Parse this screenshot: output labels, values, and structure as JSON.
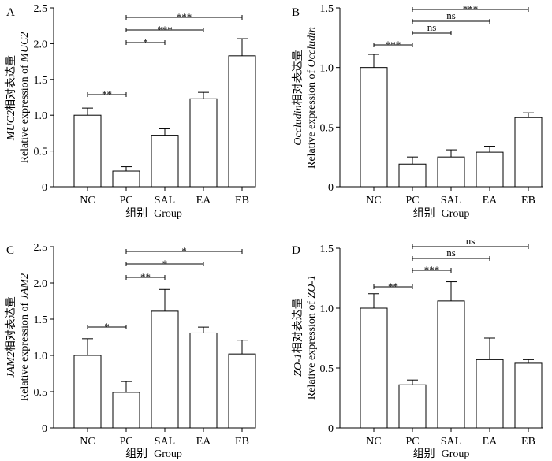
{
  "chart_data": [
    {
      "type": "bar",
      "panel": "A",
      "categories": [
        "NC",
        "PC",
        "SAL",
        "EA",
        "EB"
      ],
      "values": [
        1.0,
        0.22,
        0.72,
        1.23,
        1.83
      ],
      "errors": [
        0.1,
        0.06,
        0.09,
        0.09,
        0.24
      ],
      "ylabel_prefix": "MUC2",
      "ylabel_cn": "相对表达量",
      "ylabel_en_text": "Relative expression of ",
      "ylabel_en_gene": "MUC2",
      "xlabel_cn": "组别",
      "xlabel_en": "Group",
      "ylim": [
        0,
        2.5
      ],
      "yticks": [
        "0",
        "0.5",
        "1.0",
        "1.5",
        "2.0",
        "2.5"
      ],
      "significance": [
        {
          "from": 0,
          "to": 1,
          "label": "**"
        },
        {
          "from": 1,
          "to": 2,
          "label": "*"
        },
        {
          "from": 1,
          "to": 3,
          "label": "***"
        },
        {
          "from": 1,
          "to": 4,
          "label": "***"
        }
      ]
    },
    {
      "type": "bar",
      "panel": "B",
      "categories": [
        "NC",
        "PC",
        "SAL",
        "EA",
        "EB"
      ],
      "values": [
        1.0,
        0.19,
        0.25,
        0.29,
        0.58
      ],
      "errors": [
        0.11,
        0.06,
        0.06,
        0.05,
        0.04
      ],
      "ylabel_prefix": "Occludin",
      "ylabel_cn": "相对表达量",
      "ylabel_en_text": "Relative expression of ",
      "ylabel_en_gene": "Occludin",
      "xlabel_cn": "组别",
      "xlabel_en": "Group",
      "ylim": [
        0,
        1.5
      ],
      "yticks": [
        "0",
        "0.5",
        "1.0",
        "1.5"
      ],
      "significance": [
        {
          "from": 0,
          "to": 1,
          "label": "***"
        },
        {
          "from": 1,
          "to": 2,
          "label": "ns"
        },
        {
          "from": 1,
          "to": 3,
          "label": "ns"
        },
        {
          "from": 1,
          "to": 4,
          "label": "***"
        }
      ]
    },
    {
      "type": "bar",
      "panel": "C",
      "categories": [
        "NC",
        "PC",
        "SAL",
        "EA",
        "EB"
      ],
      "values": [
        1.0,
        0.49,
        1.61,
        1.31,
        1.02
      ],
      "errors": [
        0.23,
        0.15,
        0.3,
        0.08,
        0.19
      ],
      "ylabel_prefix": "JAM2",
      "ylabel_cn": "相对表达量",
      "ylabel_en_text": "Relative expression of ",
      "ylabel_en_gene": "JAM2",
      "xlabel_cn": "组别",
      "xlabel_en": "Group",
      "ylim": [
        0,
        2.5
      ],
      "yticks": [
        "0",
        "0.5",
        "1.0",
        "1.5",
        "2.0",
        "2.5"
      ],
      "significance": [
        {
          "from": 0,
          "to": 1,
          "label": "*"
        },
        {
          "from": 1,
          "to": 2,
          "label": "**"
        },
        {
          "from": 1,
          "to": 3,
          "label": "*"
        },
        {
          "from": 1,
          "to": 4,
          "label": "*"
        }
      ]
    },
    {
      "type": "bar",
      "panel": "D",
      "categories": [
        "NC",
        "PC",
        "SAL",
        "EA",
        "EB"
      ],
      "values": [
        1.0,
        0.36,
        1.06,
        0.57,
        0.54
      ],
      "errors": [
        0.12,
        0.04,
        0.16,
        0.18,
        0.03
      ],
      "ylabel_prefix": "ZO-1",
      "ylabel_cn": "相对表达量",
      "ylabel_en_text": "Relative expression of ",
      "ylabel_en_gene": "ZO-1",
      "xlabel_cn": "组别",
      "xlabel_en": "Group",
      "ylim": [
        0,
        1.5
      ],
      "yticks": [
        "0",
        "0.5",
        "1.0",
        "1.5"
      ],
      "significance": [
        {
          "from": 0,
          "to": 1,
          "label": "**"
        },
        {
          "from": 1,
          "to": 2,
          "label": "***"
        },
        {
          "from": 1,
          "to": 3,
          "label": "ns"
        },
        {
          "from": 1,
          "to": 4,
          "label": "ns"
        }
      ]
    }
  ]
}
